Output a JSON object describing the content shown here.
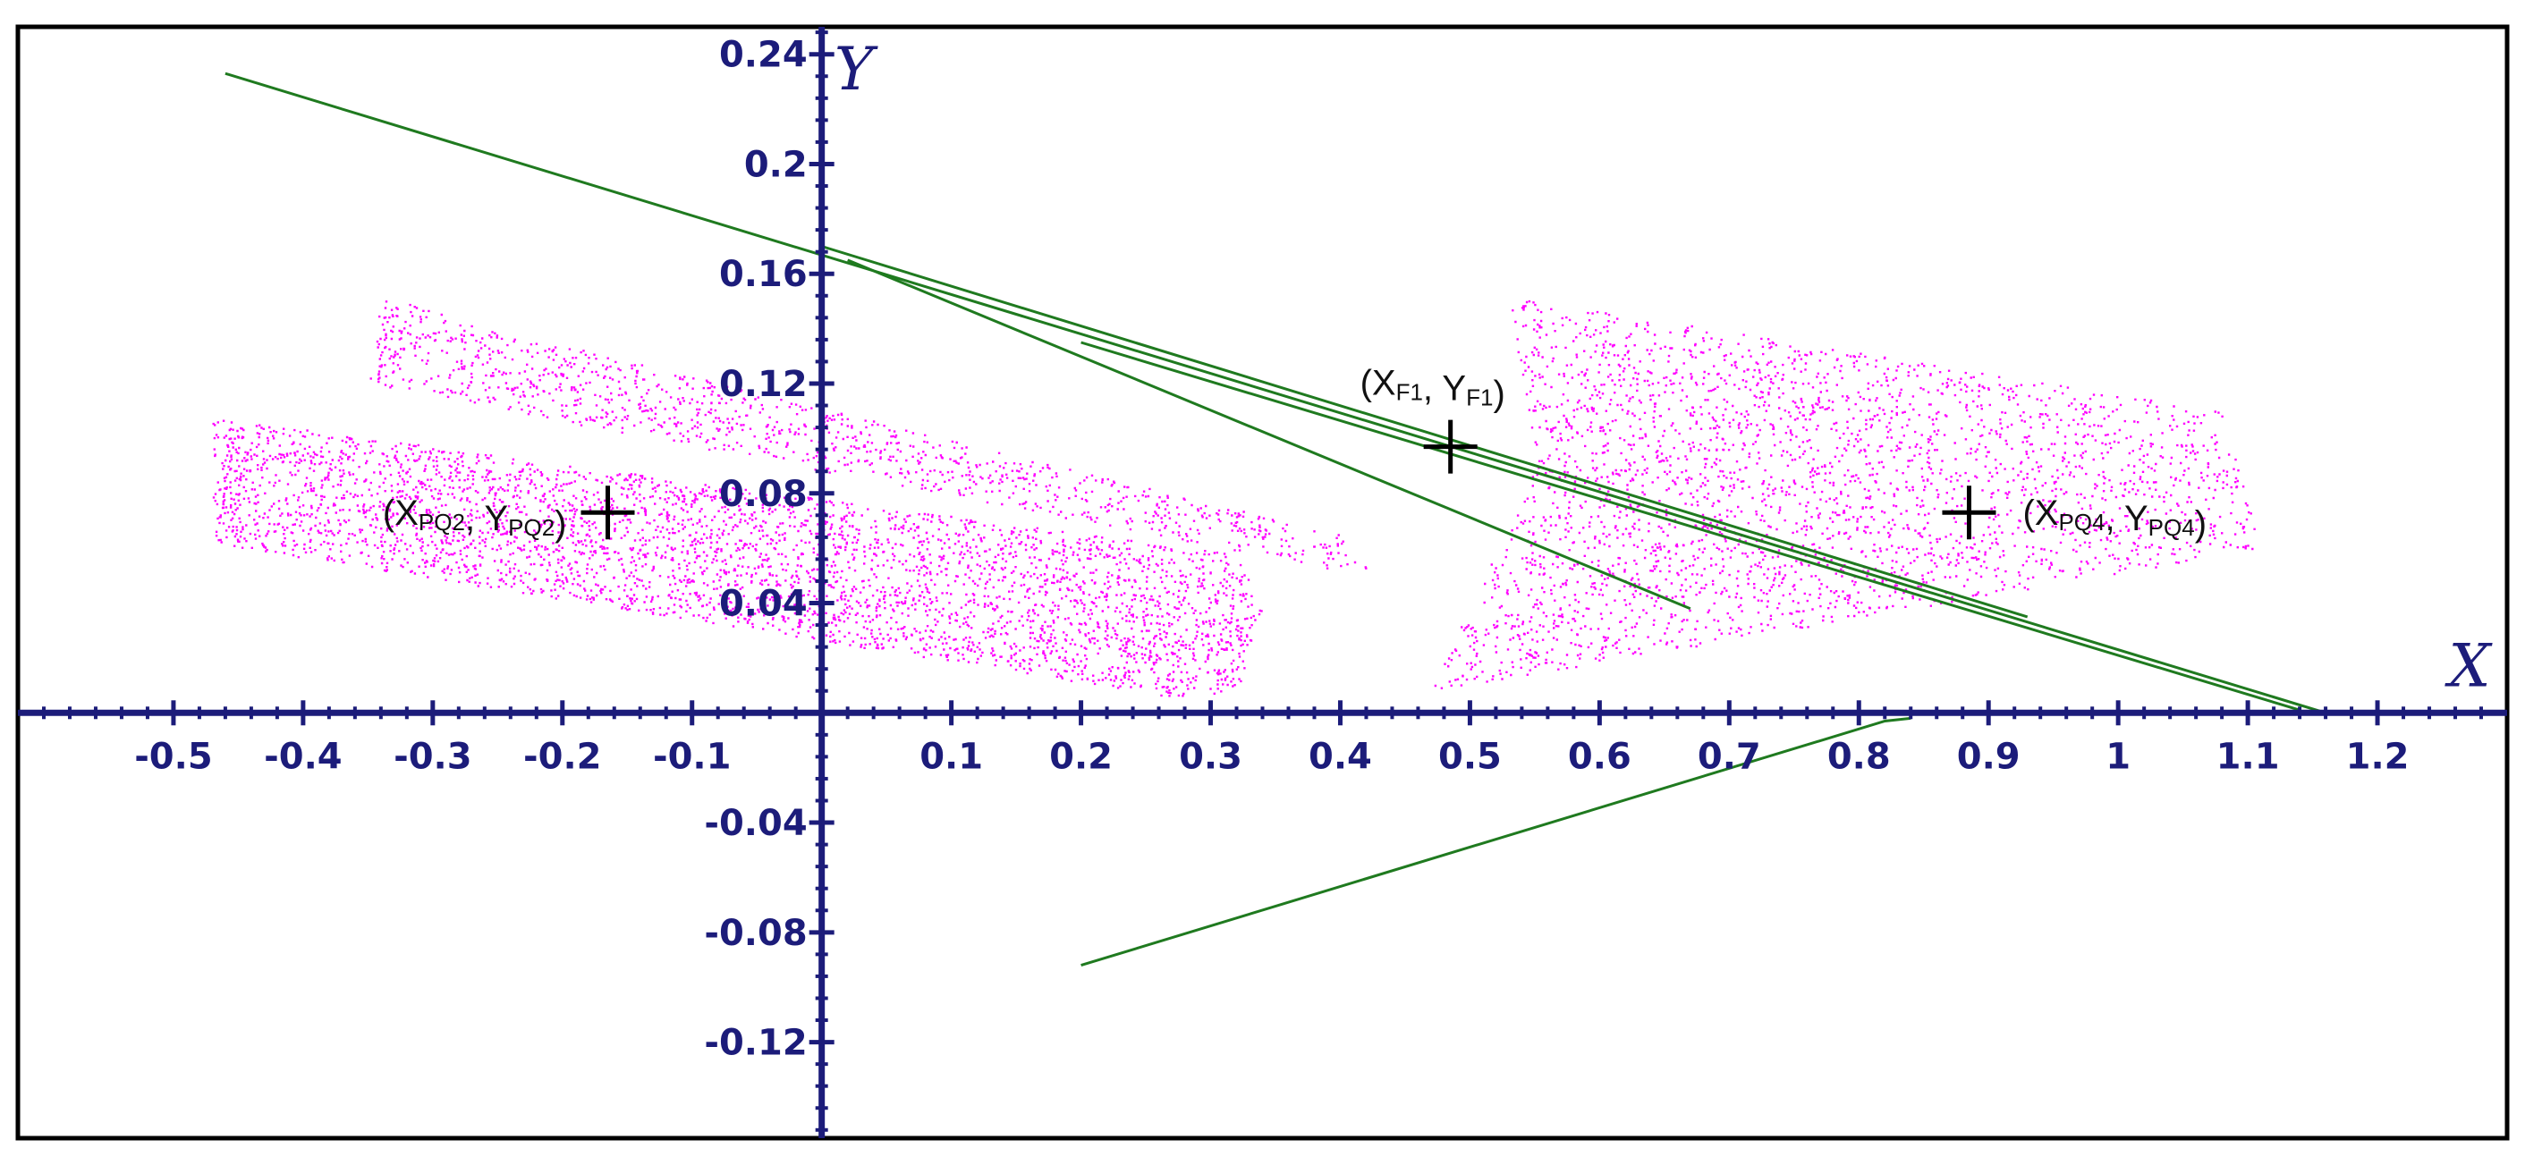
{
  "colors": {
    "axis": "#1c1c7a",
    "scatter": "#ff00ff",
    "lines": "#1f7a1f",
    "marker": "#000000",
    "frame": "#000000"
  },
  "chart_data": {
    "type": "scatter",
    "xlabel": "X",
    "ylabel": "Y",
    "xlim": [
      -0.62,
      1.3
    ],
    "ylim": [
      -0.155,
      0.25
    ],
    "grid": false,
    "x_ticks": [
      -0.5,
      -0.4,
      -0.3,
      -0.2,
      -0.1,
      0.1,
      0.2,
      0.3,
      0.4,
      0.5,
      0.6,
      0.7,
      0.8,
      0.9,
      1,
      1.1,
      1.2
    ],
    "x_tick_labels": [
      "-0.5",
      "-0.4",
      "-0.3",
      "-0.2",
      "-0.1",
      "0.1",
      "0.2",
      "0.3",
      "0.4",
      "0.5",
      "0.6",
      "0.7",
      "0.8",
      "0.9",
      "1",
      "1.1",
      "1.2"
    ],
    "y_ticks": [
      0.24,
      0.2,
      0.16,
      0.12,
      0.08,
      0.04,
      -0.04,
      -0.08,
      -0.12
    ],
    "y_tick_labels": [
      "0.24",
      "0.2",
      "0.16",
      "0.12",
      "0.08",
      "0.04",
      "-0.04",
      "-0.08",
      "-0.12"
    ],
    "point_clouds": [
      {
        "polygon": [
          [
            -0.47,
            0.108
          ],
          [
            0.32,
            0.058
          ],
          [
            0.34,
            0.037
          ],
          [
            0.32,
            0.008
          ],
          [
            0.27,
            0.006
          ],
          [
            -0.47,
            0.062
          ]
        ]
      },
      {
        "polygon": [
          [
            -0.34,
            0.152
          ],
          [
            -0.25,
            0.14
          ],
          [
            0.4,
            0.065
          ],
          [
            0.42,
            0.053
          ],
          [
            0.4,
            0.052
          ],
          [
            -0.35,
            0.12
          ]
        ]
      },
      {
        "polygon": [
          [
            0.53,
            0.152
          ],
          [
            1.08,
            0.11
          ],
          [
            1.11,
            0.06
          ],
          [
            0.47,
            0.008
          ],
          [
            0.52,
            0.06
          ],
          [
            0.55,
            0.09
          ]
        ]
      }
    ],
    "lines": [
      {
        "points": [
          [
            -0.46,
            0.233
          ],
          [
            1.16,
            0.0
          ]
        ]
      },
      {
        "points": [
          [
            0.0,
            0.17
          ],
          [
            0.93,
            0.035
          ]
        ]
      },
      {
        "points": [
          [
            0.02,
            0.165
          ],
          [
            0.67,
            0.038
          ]
        ]
      },
      {
        "points": [
          [
            0.2,
            0.135
          ],
          [
            1.14,
            0.001
          ]
        ]
      },
      {
        "points": [
          [
            0.2,
            -0.092
          ],
          [
            0.82,
            -0.003
          ],
          [
            0.84,
            -0.002
          ]
        ]
      }
    ],
    "markers": [
      {
        "x": -0.165,
        "y": 0.073,
        "label_main": "(X",
        "label_sub1": "PQ2",
        "label_mid": ", Y",
        "label_sub2": "PQ2",
        "label_end": ")",
        "label_side": "left"
      },
      {
        "x": 0.485,
        "y": 0.097,
        "label_main": "(X",
        "label_sub1": "F1",
        "label_mid": ", Y",
        "label_sub2": "F1",
        "label_end": ")",
        "label_side": "top"
      },
      {
        "x": 0.885,
        "y": 0.073,
        "label_main": "(X",
        "label_sub1": "PQ4",
        "label_mid": ", Y",
        "label_sub2": "PQ4",
        "label_end": ")",
        "label_side": "right"
      }
    ]
  }
}
